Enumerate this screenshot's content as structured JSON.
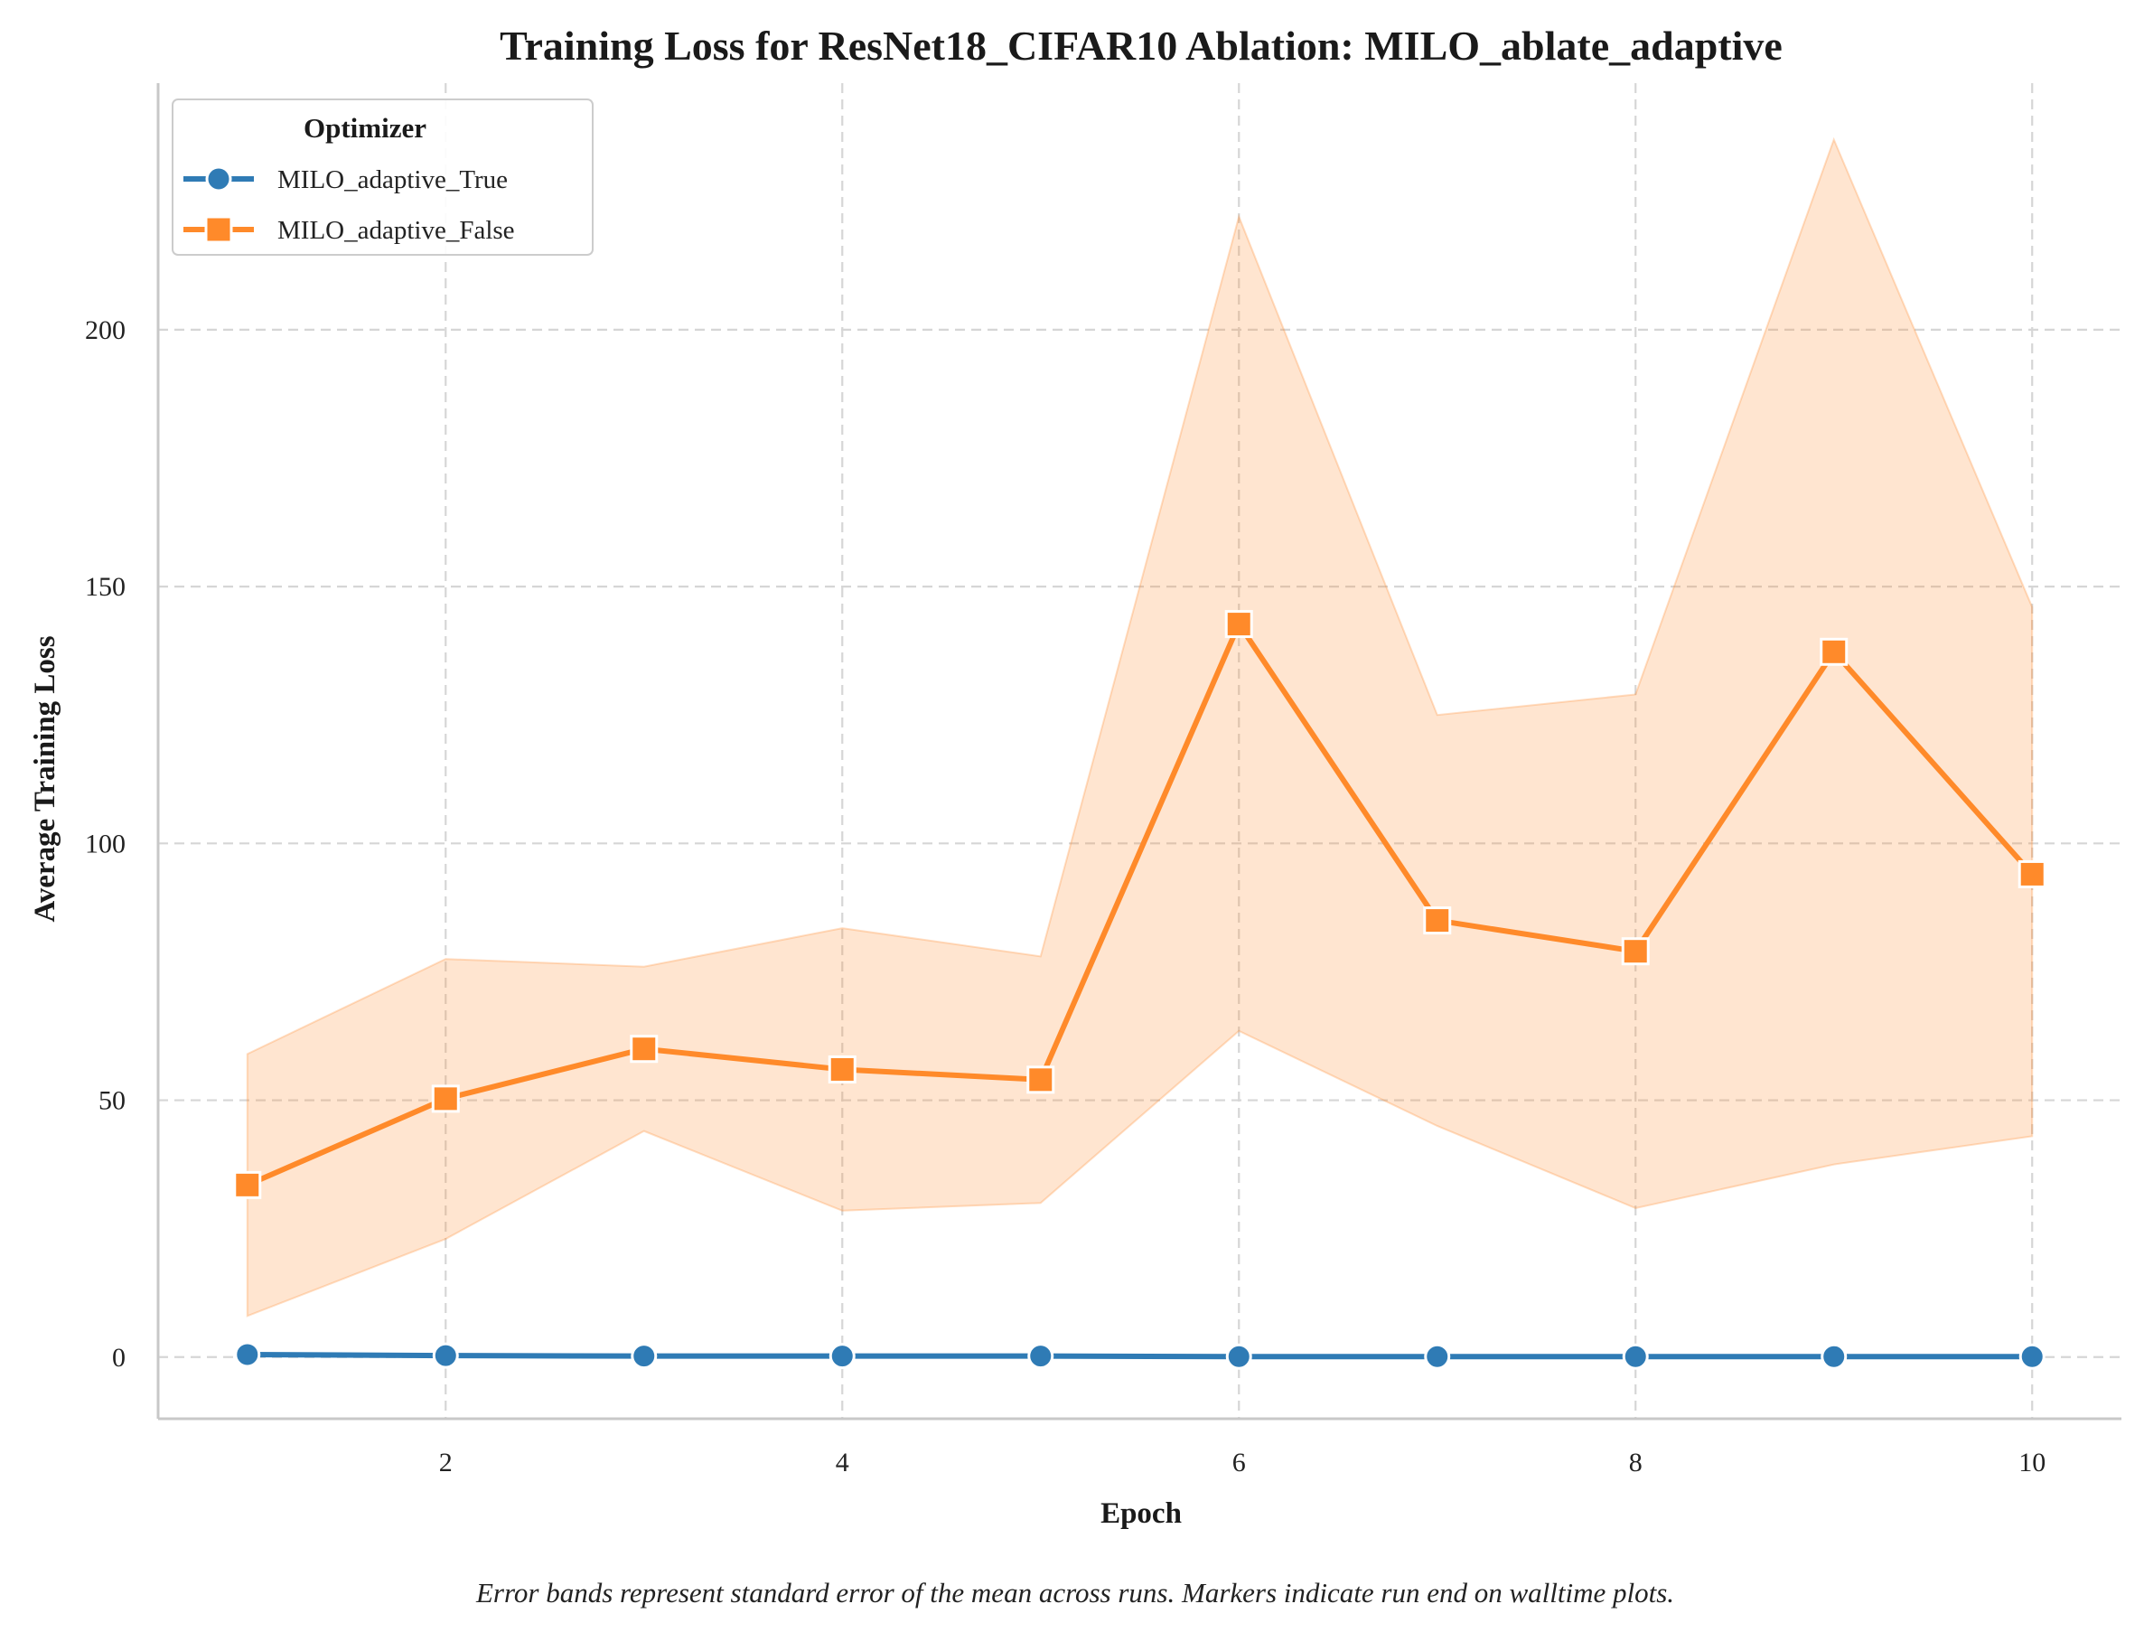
{
  "chart_data": {
    "type": "line",
    "title": "Training Loss for ResNet18_CIFAR10 Ablation: MILO_ablate_adaptive",
    "xlabel": "Epoch",
    "ylabel": "Average Training Loss",
    "caption": "Error bands represent standard error of the mean across runs. Markers indicate run end on walltime plots.",
    "xlim": [
      0.55,
      10.45
    ],
    "ylim": [
      -12,
      248
    ],
    "xticks": [
      2,
      4,
      6,
      8,
      10
    ],
    "yticks": [
      0,
      50,
      100,
      150,
      200
    ],
    "grid": true,
    "grid_style": "dashed",
    "legend": {
      "title": "Optimizer",
      "placement": "top-left"
    },
    "x": [
      1,
      2,
      3,
      4,
      5,
      6,
      7,
      8,
      9,
      10
    ],
    "series": [
      {
        "name": "MILO_adaptive_True",
        "color": "#2f7bb5",
        "marker": "circle",
        "values": [
          0.5,
          0.3,
          0.2,
          0.2,
          0.2,
          0.1,
          0.1,
          0.1,
          0.1,
          0.1
        ],
        "band_low": [
          0.4,
          0.2,
          0.1,
          0.1,
          0.1,
          0.0,
          0.0,
          0.0,
          0.0,
          0.0
        ],
        "band_high": [
          0.6,
          0.4,
          0.3,
          0.3,
          0.3,
          0.2,
          0.2,
          0.2,
          0.2,
          0.2
        ]
      },
      {
        "name": "MILO_adaptive_False",
        "color": "#ff8a2a",
        "marker": "square",
        "values": [
          33.5,
          50.3,
          60.0,
          56.0,
          54.0,
          142.7,
          85.0,
          79.0,
          137.3,
          94.0
        ],
        "band_low": [
          8.0,
          23.0,
          44.0,
          28.5,
          30.0,
          63.5,
          45.0,
          29.0,
          37.5,
          43.0
        ],
        "band_high": [
          59.0,
          77.5,
          76.0,
          83.5,
          78.0,
          222.0,
          125.0,
          129.0,
          237.0,
          146.0
        ]
      }
    ]
  }
}
